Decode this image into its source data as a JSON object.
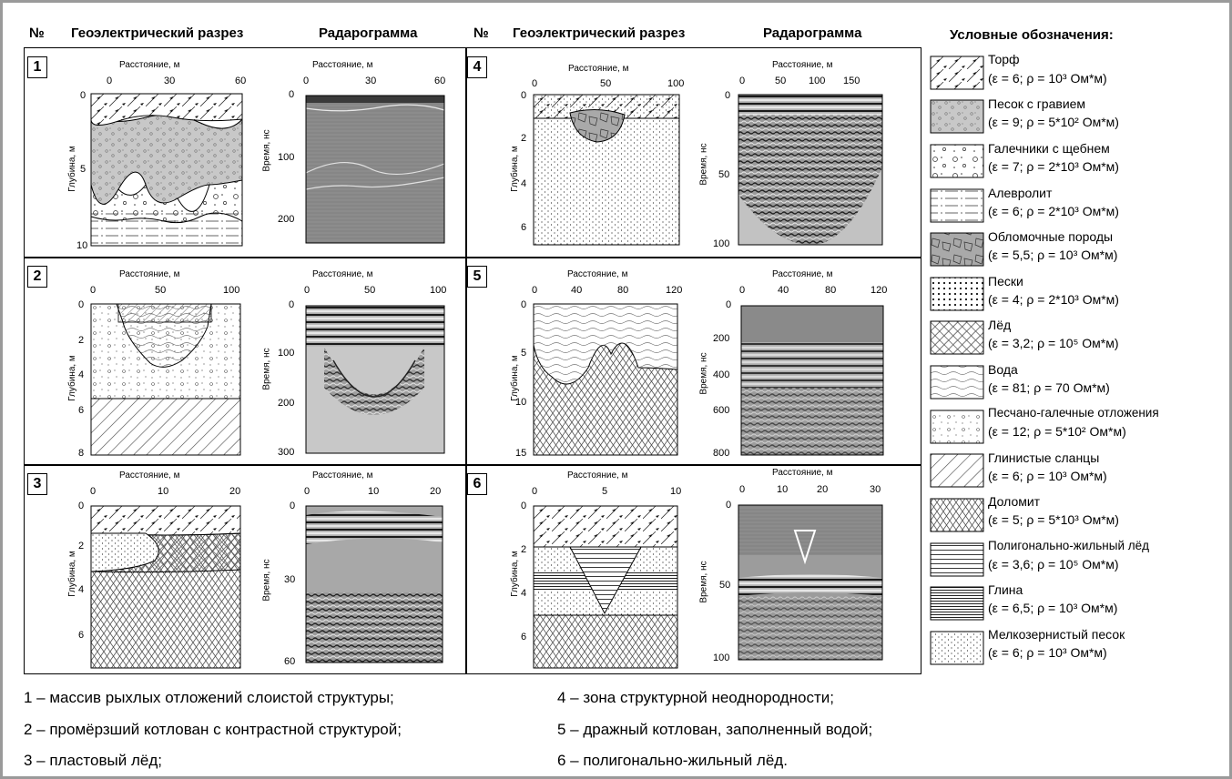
{
  "header": {
    "no": "№",
    "geo": "Геоэлектрический разрез",
    "radar": "Радарограмма",
    "legend_title": "Условные обозначения:"
  },
  "panels": [
    {
      "num": "1",
      "dist": "Расстояние, м",
      "depth": "Глубина, м",
      "time": "Время, нс",
      "geo_x": [
        "0",
        "30",
        "60"
      ],
      "geo_y": [
        "0",
        "5",
        "10"
      ],
      "rad_x": [
        "0",
        "30",
        "60"
      ],
      "rad_y": [
        "0",
        "100",
        "200"
      ]
    },
    {
      "num": "2",
      "dist": "Расстояние, м",
      "depth": "Глубина, м",
      "time": "Время, нс",
      "geo_x": [
        "0",
        "50",
        "100"
      ],
      "geo_y": [
        "0",
        "2",
        "4",
        "6",
        "8"
      ],
      "rad_x": [
        "0",
        "50",
        "100"
      ],
      "rad_y": [
        "0",
        "100",
        "200",
        "300"
      ]
    },
    {
      "num": "3",
      "dist": "Расстояние, м",
      "depth": "Глубина, м",
      "time": "Время, нс",
      "geo_x": [
        "0",
        "10",
        "20"
      ],
      "geo_y": [
        "0",
        "2",
        "4",
        "6"
      ],
      "rad_x": [
        "0",
        "10",
        "20"
      ],
      "rad_y": [
        "0",
        "30",
        "60"
      ]
    },
    {
      "num": "4",
      "dist": "Расстояние, м",
      "depth": "Глубина, м",
      "time": "Время, нс",
      "geo_x": [
        "0",
        "50",
        "100"
      ],
      "geo_y": [
        "0",
        "2",
        "4",
        "6"
      ],
      "rad_x": [
        "0",
        "50",
        "100",
        "150"
      ],
      "rad_y": [
        "0",
        "50",
        "100"
      ]
    },
    {
      "num": "5",
      "dist": "Расстояние, м",
      "depth": "Глубина, м",
      "time": "Время, нс",
      "geo_x": [
        "0",
        "40",
        "80",
        "120"
      ],
      "geo_y": [
        "0",
        "5",
        "10",
        "15"
      ],
      "rad_x": [
        "0",
        "40",
        "80",
        "120"
      ],
      "rad_y": [
        "0",
        "200",
        "400",
        "600",
        "800"
      ]
    },
    {
      "num": "6",
      "dist": "Расстояние, м",
      "depth": "Глубина, м",
      "time": "Время, нс",
      "geo_x": [
        "0",
        "5",
        "10"
      ],
      "geo_y": [
        "0",
        "2",
        "4",
        "6"
      ],
      "rad_x": [
        "0",
        "10",
        "20",
        "30"
      ],
      "rad_y": [
        "0",
        "50",
        "100"
      ]
    }
  ],
  "legend": [
    {
      "name": "Торф",
      "param": "(ε = 6; ρ = 10³ Ом*м)"
    },
    {
      "name": "Песок с гравием",
      "param": "(ε = 9; ρ = 5*10² Ом*м)"
    },
    {
      "name": "Галечники с щебнем",
      "param": "(ε = 7; ρ = 2*10³ Ом*м)"
    },
    {
      "name": "Алевролит",
      "param": "(ε = 6; ρ = 2*10³ Ом*м)"
    },
    {
      "name": "Обломочные породы",
      "param": "(ε = 5,5; ρ = 10³ Ом*м)"
    },
    {
      "name": "Пески",
      "param": "(ε = 4; ρ = 2*10³ Ом*м)"
    },
    {
      "name": "Лёд",
      "param": "(ε = 3,2; ρ = 10⁵ Ом*м)"
    },
    {
      "name": "Вода",
      "param": "(ε = 81; ρ = 70 Ом*м)"
    },
    {
      "name": "Песчано-галечные отложения",
      "param": "(ε = 12; ρ = 5*10² Ом*м)"
    },
    {
      "name": "Глинистые сланцы",
      "param": "(ε = 6; ρ = 10³ Ом*м)"
    },
    {
      "name": "Доломит",
      "param": "(ε = 5; ρ = 5*10³ Ом*м)"
    },
    {
      "name": "Полигонально-жильный лёд",
      "param": "(ε = 3,6; ρ = 10⁵ Ом*м)"
    },
    {
      "name": "Глина",
      "param": "(ε = 6,5; ρ = 10³ Ом*м)"
    },
    {
      "name": "Мелкозернистый песок",
      "param": "(ε = 6; ρ = 10³ Ом*м)"
    }
  ],
  "captions": [
    "1 – массив рыхлых отложений слоистой структуры;",
    "2 – промёрзший котлован с контрастной структурой;",
    "3 – пластовый лёд;",
    "4 – зона структурной неоднородности;",
    "5 – дражный котлован, заполненный водой;",
    "6 – полигонально-жильный лёд."
  ]
}
